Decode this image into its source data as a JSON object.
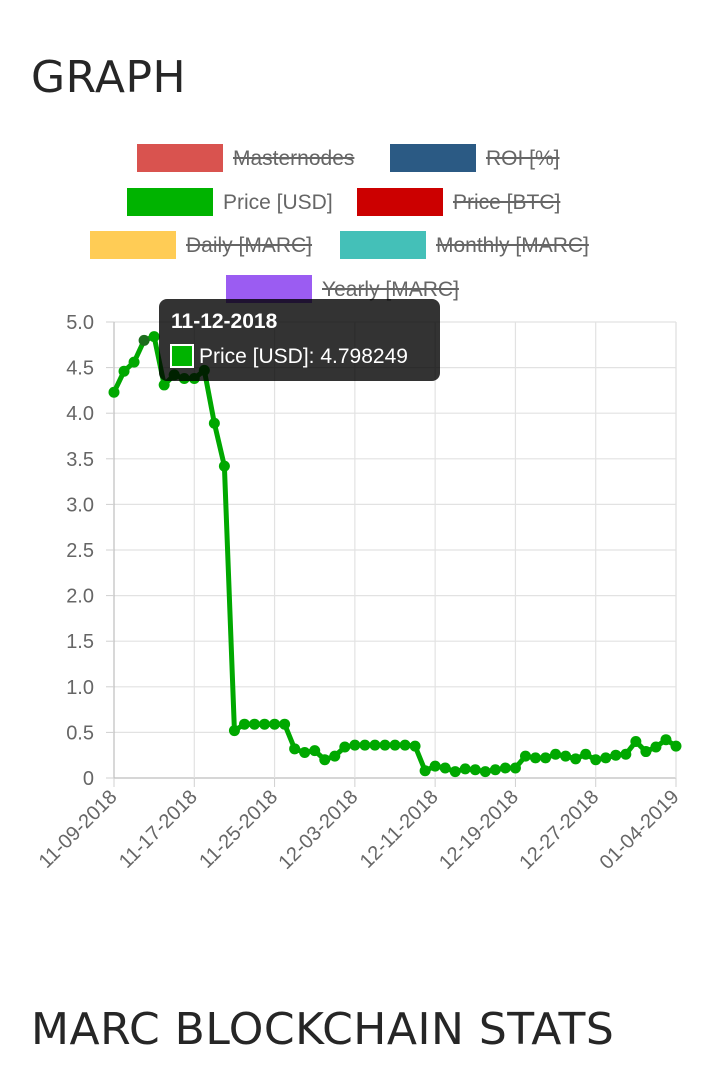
{
  "page": {
    "graph_heading": "GRAPH",
    "stats_heading": "MARC BLOCKCHAIN STATS"
  },
  "chart_data": {
    "type": "line",
    "title": "",
    "xlabel": "",
    "ylabel": "",
    "ylim": [
      0,
      5
    ],
    "y_ticks": [
      "5.0",
      "4.5",
      "4.0",
      "3.5",
      "3.0",
      "2.5",
      "2.0",
      "1.5",
      "1.0",
      "0.5",
      "0"
    ],
    "x_ticks": [
      "11-09-2018",
      "11-17-2018",
      "11-25-2018",
      "12-03-2018",
      "12-11-2018",
      "12-19-2018",
      "12-27-2018",
      "01-04-2019"
    ],
    "grid": true,
    "legend": [
      {
        "name": "Masternodes",
        "color": "#d9534f",
        "hidden": true
      },
      {
        "name": "ROI [%]",
        "color": "#2b5a84",
        "hidden": true
      },
      {
        "name": "Price [USD]",
        "color": "#00b300",
        "hidden": false
      },
      {
        "name": "Price [BTC]",
        "color": "#cc0000",
        "hidden": true
      },
      {
        "name": "Daily [MARC]",
        "color": "#ffcc55",
        "hidden": true
      },
      {
        "name": "Monthly [MARC]",
        "color": "#44c0b8",
        "hidden": true
      },
      {
        "name": "Yearly [MARC]",
        "color": "#9b5cf2",
        "hidden": true
      }
    ],
    "series": [
      {
        "name": "Price [USD]",
        "color": "#00a800",
        "x": [
          "11-09-2018",
          "11-10-2018",
          "11-11-2018",
          "11-12-2018",
          "11-13-2018",
          "11-14-2018",
          "11-15-2018",
          "11-16-2018",
          "11-17-2018",
          "11-18-2018",
          "11-19-2018",
          "11-20-2018",
          "11-21-2018",
          "11-22-2018",
          "11-23-2018",
          "11-24-2018",
          "11-25-2018",
          "11-26-2018",
          "11-27-2018",
          "11-28-2018",
          "11-29-2018",
          "11-30-2018",
          "12-01-2018",
          "12-02-2018",
          "12-03-2018",
          "12-04-2018",
          "12-05-2018",
          "12-06-2018",
          "12-07-2018",
          "12-08-2018",
          "12-09-2018",
          "12-10-2018",
          "12-11-2018",
          "12-12-2018",
          "12-13-2018",
          "12-14-2018",
          "12-15-2018",
          "12-16-2018",
          "12-17-2018",
          "12-18-2018",
          "12-19-2018",
          "12-20-2018",
          "12-21-2018",
          "12-22-2018",
          "12-23-2018",
          "12-24-2018",
          "12-25-2018",
          "12-26-2018",
          "12-27-2018",
          "12-28-2018",
          "12-29-2018",
          "12-30-2018",
          "12-31-2018",
          "01-01-2019",
          "01-02-2019",
          "01-03-2019",
          "01-04-2019"
        ],
        "values": [
          4.23,
          4.46,
          4.56,
          4.798249,
          4.84,
          4.31,
          4.42,
          4.38,
          4.38,
          4.47,
          3.89,
          3.42,
          0.52,
          0.59,
          0.59,
          0.59,
          0.59,
          0.59,
          0.32,
          0.28,
          0.3,
          0.2,
          0.24,
          0.34,
          0.36,
          0.36,
          0.36,
          0.36,
          0.36,
          0.36,
          0.35,
          0.08,
          0.13,
          0.11,
          0.07,
          0.1,
          0.09,
          0.07,
          0.09,
          0.11,
          0.11,
          0.24,
          0.22,
          0.22,
          0.26,
          0.24,
          0.21,
          0.26,
          0.2,
          0.22,
          0.25,
          0.26,
          0.4,
          0.29,
          0.34,
          0.42,
          0.35
        ]
      }
    ],
    "tooltip": {
      "title": "11-12-2018",
      "label": "Price [USD]: 4.798249",
      "color": "#00b300"
    }
  }
}
